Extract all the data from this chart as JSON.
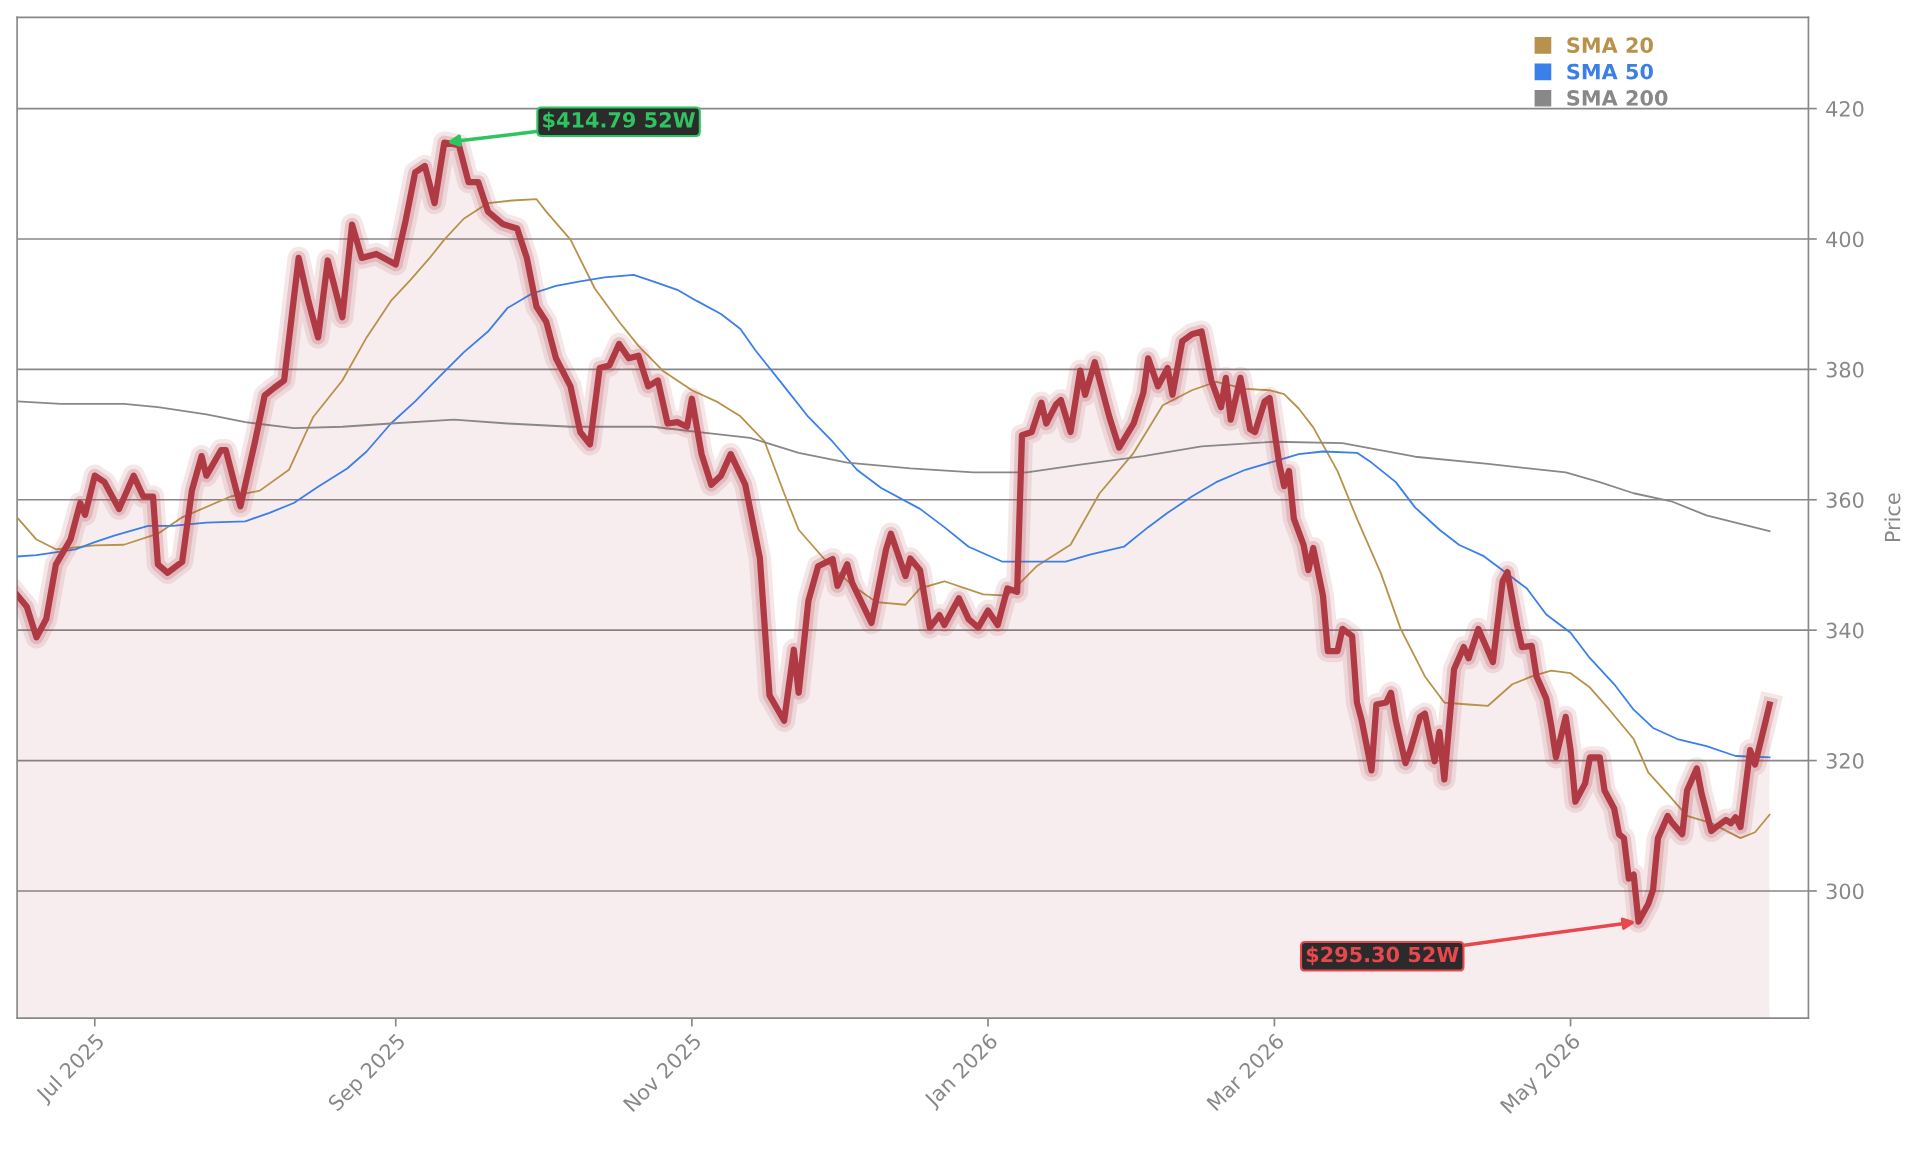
{
  "chart_data": {
    "type": "line",
    "ylabel": "Price",
    "xlim": [
      "2025-06-15",
      "2026-06-19"
    ],
    "ylim": [
      280.5,
      434
    ],
    "xticks": [
      {
        "value": "2025-07-01",
        "label": "Jul 2025"
      },
      {
        "value": "2025-09-01",
        "label": "Sep 2025"
      },
      {
        "value": "2025-11-01",
        "label": "Nov 2025"
      },
      {
        "value": "2026-01-01",
        "label": "Jan 2026"
      },
      {
        "value": "2026-03-01",
        "label": "Mar 2026"
      },
      {
        "value": "2026-05-01",
        "label": "May 2026"
      }
    ],
    "yticks": [
      300,
      320,
      340,
      360,
      380,
      400,
      420
    ],
    "grid": "y",
    "legend": "top right",
    "annotations": [
      {
        "text": "$414.79 52W",
        "x": "2025-09-11",
        "y": 414.79
      },
      {
        "text": "$295.30 52W",
        "x": "2026-05-15",
        "y": 295.3
      }
    ],
    "series": [
      {
        "type": "area",
        "color": "#b03a44",
        "x": [
          "2025-06-15",
          "2025-06-17",
          "2025-06-19",
          "2025-06-21",
          "2025-06-23",
          "2025-06-26",
          "2025-06-28",
          "2025-06-29",
          "2025-07-01",
          "2025-07-03",
          "2025-07-06",
          "2025-07-09",
          "2025-07-11",
          "2025-07-13",
          "2025-07-14",
          "2025-07-16",
          "2025-07-19",
          "2025-07-21",
          "2025-07-23",
          "2025-07-24",
          "2025-07-27",
          "2025-07-28",
          "2025-07-31",
          "2025-08-03",
          "2025-08-05",
          "2025-08-07",
          "2025-08-09",
          "2025-08-12",
          "2025-08-14",
          "2025-08-16",
          "2025-08-18",
          "2025-08-21",
          "2025-08-23",
          "2025-08-25",
          "2025-08-28",
          "2025-09-01",
          "2025-09-03",
          "2025-09-05",
          "2025-09-07",
          "2025-09-09",
          "2025-09-11",
          "2025-09-14",
          "2025-09-16",
          "2025-09-18",
          "2025-09-20",
          "2025-09-23",
          "2025-09-26",
          "2025-09-28",
          "2025-09-30",
          "2025-10-02",
          "2025-10-04",
          "2025-10-07",
          "2025-10-09",
          "2025-10-11",
          "2025-10-13",
          "2025-10-15",
          "2025-10-17",
          "2025-10-19",
          "2025-10-21",
          "2025-10-23",
          "2025-10-25",
          "2025-10-27",
          "2025-10-29",
          "2025-10-31",
          "2025-11-01",
          "2025-11-03",
          "2025-11-05",
          "2025-11-07",
          "2025-11-09",
          "2025-11-12",
          "2025-11-15",
          "2025-11-17",
          "2025-11-20",
          "2025-11-22",
          "2025-11-23",
          "2025-11-25",
          "2025-11-27",
          "2025-11-30",
          "2025-12-01",
          "2025-12-03",
          "2025-12-04",
          "2025-12-08",
          "2025-12-11",
          "2025-12-12",
          "2025-12-15",
          "2025-12-16",
          "2025-12-18",
          "2025-12-20",
          "2025-12-22",
          "2025-12-23",
          "2025-12-26",
          "2025-12-28",
          "2025-12-30",
          "2026-01-01",
          "2026-01-03",
          "2026-01-05",
          "2026-01-07",
          "2026-01-08",
          "2026-01-10",
          "2026-01-12",
          "2026-01-13",
          "2026-01-15",
          "2026-01-16",
          "2026-01-18",
          "2026-01-20",
          "2026-01-21",
          "2026-01-23",
          "2026-01-26",
          "2026-01-28",
          "2026-01-31",
          "2026-02-02",
          "2026-02-03",
          "2026-02-05",
          "2026-02-07",
          "2026-02-08",
          "2026-02-10",
          "2026-02-12",
          "2026-02-14",
          "2026-02-16",
          "2026-02-18",
          "2026-02-19",
          "2026-02-20",
          "2026-02-22",
          "2026-02-24",
          "2026-02-25",
          "2026-02-27",
          "2026-02-28",
          "2026-03-02",
          "2026-03-03",
          "2026-03-04",
          "2026-03-05",
          "2026-03-07",
          "2026-03-08",
          "2026-03-09",
          "2026-03-11",
          "2026-03-12",
          "2026-03-14",
          "2026-03-15",
          "2026-03-17",
          "2026-03-18",
          "2026-03-19",
          "2026-03-21",
          "2026-03-22",
          "2026-03-24",
          "2026-03-25",
          "2026-03-26",
          "2026-03-28",
          "2026-03-29",
          "2026-03-31",
          "2026-04-01",
          "2026-04-03",
          "2026-04-04",
          "2026-04-05",
          "2026-04-07",
          "2026-04-09",
          "2026-04-10",
          "2026-04-12",
          "2026-04-14",
          "2026-04-15",
          "2026-04-17",
          "2026-04-18",
          "2026-04-20",
          "2026-04-21",
          "2026-04-23",
          "2026-04-24",
          "2026-04-26",
          "2026-04-27",
          "2026-04-28",
          "2026-04-30",
          "2026-05-01",
          "2026-05-02",
          "2026-05-04",
          "2026-05-05",
          "2026-05-07",
          "2026-05-08",
          "2026-05-10",
          "2026-05-11",
          "2026-05-12",
          "2026-05-13",
          "2026-05-14",
          "2026-05-15",
          "2026-05-17",
          "2026-05-18",
          "2026-05-19",
          "2026-05-21",
          "2026-05-22",
          "2026-05-24",
          "2026-05-25",
          "2026-05-27",
          "2026-05-28",
          "2026-05-30",
          "2026-05-31",
          "2026-06-02",
          "2026-06-03",
          "2026-06-04",
          "2026-06-05",
          "2026-06-07",
          "2026-06-08",
          "2026-06-10",
          "2026-06-11"
        ],
        "values": [
          345.4,
          343.6,
          338.9,
          341.7,
          350.1,
          353.9,
          359.5,
          357.7,
          363.7,
          362.7,
          358.6,
          363.7,
          360.5,
          360.5,
          350.1,
          348.8,
          350.5,
          361.4,
          366.7,
          363.7,
          367.6,
          367.6,
          359.0,
          368.9,
          376.0,
          377.2,
          378.3,
          397.1,
          390.5,
          384.9,
          396.7,
          388.0,
          402.2,
          397.1,
          397.7,
          396.1,
          402.7,
          410.2,
          411.2,
          405.5,
          414.79,
          414.4,
          408.7,
          408.7,
          404.2,
          402.3,
          401.6,
          397.1,
          389.6,
          387.3,
          381.7,
          377.4,
          370.4,
          368.5,
          380.2,
          380.6,
          383.9,
          381.7,
          382.1,
          377.4,
          378.3,
          371.7,
          371.9,
          371.2,
          375.5,
          367.0,
          362.3,
          363.7,
          367.0,
          362.3,
          351.1,
          330.0,
          326.1,
          337.0,
          330.4,
          344.5,
          349.8,
          350.9,
          346.8,
          350.1,
          347.3,
          341.1,
          352.4,
          354.8,
          348.3,
          351.0,
          349.2,
          340.4,
          342.3,
          340.8,
          344.9,
          341.7,
          340.4,
          343.0,
          340.8,
          346.4,
          345.9,
          369.9,
          370.4,
          374.9,
          371.7,
          374.6,
          375.3,
          370.4,
          379.8,
          376.1,
          381.1,
          372.7,
          368.0,
          371.7,
          376.4,
          381.7,
          377.4,
          380.2,
          376.1,
          384.3,
          385.4,
          385.8,
          378.3,
          374.2,
          378.7,
          372.3,
          378.7,
          370.8,
          370.4,
          375.1,
          375.6,
          365.5,
          362.1,
          364.4,
          357.1,
          353.1,
          349.2,
          352.6,
          345.3,
          336.8,
          336.8,
          340.2,
          339.1,
          328.9,
          326.1,
          318.5,
          328.6,
          328.9,
          330.4,
          326.1,
          319.6,
          321.6,
          326.7,
          327.2,
          319.9,
          324.4,
          317.1,
          334.0,
          337.4,
          335.7,
          340.2,
          336.8,
          335.1,
          347.5,
          348.9,
          340.7,
          337.4,
          337.6,
          332.9,
          329.5,
          325.5,
          320.5,
          326.7,
          321.6,
          313.7,
          316.5,
          320.5,
          320.5,
          315.4,
          312.6,
          308.7,
          308.1,
          301.9,
          302.5,
          295.3,
          298.0,
          300.2,
          308.1,
          311.5,
          310.4,
          308.7,
          315.4,
          318.8,
          314.9,
          309.2,
          309.8,
          310.9,
          310.4,
          311.3,
          309.8,
          321.6,
          319.4,
          325.5,
          328.6
        ]
      },
      {
        "name": "SMA 20",
        "color": "#b8924a",
        "x": [
          "2025-06-15",
          "2025-06-19",
          "2025-06-23",
          "2025-07-01",
          "2025-07-07",
          "2025-07-14",
          "2025-07-19",
          "2025-07-29",
          "2025-08-04",
          "2025-08-10",
          "2025-08-15",
          "2025-08-21",
          "2025-08-26",
          "2025-08-31",
          "2025-09-04",
          "2025-09-08",
          "2025-09-11",
          "2025-09-15",
          "2025-09-20",
          "2025-09-25",
          "2025-09-30",
          "2025-10-02",
          "2025-10-07",
          "2025-10-12",
          "2025-10-17",
          "2025-10-21",
          "2025-10-26",
          "2025-11-01",
          "2025-11-06",
          "2025-11-11",
          "2025-11-16",
          "2025-11-20",
          "2025-11-23",
          "2025-11-29",
          "2025-12-04",
          "2025-12-09",
          "2025-12-15",
          "2025-12-18",
          "2025-12-23",
          "2025-12-31",
          "2026-01-05",
          "2026-01-11",
          "2026-01-18",
          "2026-01-24",
          "2026-01-31",
          "2026-02-06",
          "2026-02-12",
          "2026-02-17",
          "2026-02-23",
          "2026-02-28",
          "2026-03-03",
          "2026-03-06",
          "2026-03-09",
          "2026-03-14",
          "2026-03-18",
          "2026-03-23",
          "2026-03-27",
          "2026-04-01",
          "2026-04-05",
          "2026-04-10",
          "2026-04-14",
          "2026-04-19",
          "2026-04-23",
          "2026-04-27",
          "2026-05-01",
          "2026-05-05",
          "2026-05-09",
          "2026-05-14",
          "2026-05-17",
          "2026-05-21",
          "2026-05-25",
          "2026-05-30",
          "2026-06-05",
          "2026-06-08",
          "2026-06-11"
        ],
        "values": [
          357.3,
          353.9,
          352.4,
          353.0,
          353.1,
          354.8,
          357.3,
          360.5,
          361.4,
          364.6,
          372.7,
          378.3,
          384.9,
          390.5,
          393.7,
          397.1,
          399.9,
          403.1,
          405.5,
          405.9,
          406.1,
          404.2,
          399.9,
          392.4,
          387.3,
          383.6,
          379.8,
          376.8,
          375.1,
          372.8,
          368.9,
          361.0,
          355.4,
          350.3,
          346.9,
          344.3,
          343.9,
          346.4,
          347.5,
          345.5,
          345.3,
          349.8,
          353.1,
          361.0,
          367.2,
          374.5,
          376.8,
          378.1,
          377.0,
          376.8,
          376.2,
          374.0,
          371.1,
          364.4,
          357.1,
          348.6,
          340.2,
          332.9,
          328.9,
          328.6,
          328.4,
          331.7,
          332.9,
          333.8,
          333.4,
          331.2,
          327.8,
          323.3,
          318.2,
          314.9,
          311.5,
          310.4,
          308.1,
          309.0,
          311.7
        ]
      },
      {
        "name": "SMA 50",
        "color": "#3b7fe8",
        "x": [
          "2025-06-15",
          "2025-06-19",
          "2025-06-27",
          "2025-07-01",
          "2025-07-05",
          "2025-07-12",
          "2025-07-17",
          "2025-07-24",
          "2025-08-01",
          "2025-08-06",
          "2025-08-11",
          "2025-08-16",
          "2025-08-22",
          "2025-08-26",
          "2025-08-31",
          "2025-09-05",
          "2025-09-10",
          "2025-09-15",
          "2025-09-20",
          "2025-09-24",
          "2025-09-29",
          "2025-10-04",
          "2025-10-09",
          "2025-10-14",
          "2025-10-20",
          "2025-10-24",
          "2025-10-29",
          "2025-11-02",
          "2025-11-07",
          "2025-11-11",
          "2025-11-14",
          "2025-11-20",
          "2025-11-25",
          "2025-11-30",
          "2025-12-05",
          "2025-12-10",
          "2025-12-18",
          "2025-12-23",
          "2025-12-28",
          "2026-01-04",
          "2026-01-09",
          "2026-01-17",
          "2026-01-22",
          "2026-01-29",
          "2026-02-03",
          "2026-02-07",
          "2026-02-12",
          "2026-02-17",
          "2026-02-23",
          "2026-03-01",
          "2026-03-06",
          "2026-03-11",
          "2026-03-18",
          "2026-03-21",
          "2026-03-26",
          "2026-03-30",
          "2026-04-04",
          "2026-04-08",
          "2026-04-13",
          "2026-04-17",
          "2026-04-22",
          "2026-04-26",
          "2026-05-01",
          "2026-05-05",
          "2026-05-10",
          "2026-05-14",
          "2026-05-18",
          "2026-05-23",
          "2026-05-29",
          "2026-06-04",
          "2026-06-11"
        ],
        "values": [
          351.3,
          351.5,
          352.4,
          353.5,
          354.5,
          356.0,
          356.0,
          356.5,
          356.7,
          358.0,
          359.5,
          362.0,
          364.8,
          367.4,
          371.7,
          375.1,
          378.9,
          382.6,
          385.8,
          389.4,
          391.6,
          392.8,
          393.5,
          394.1,
          394.5,
          393.5,
          392.2,
          390.5,
          388.5,
          386.2,
          383.0,
          377.4,
          372.7,
          368.9,
          364.6,
          361.8,
          358.6,
          355.8,
          352.8,
          350.5,
          350.5,
          350.5,
          351.6,
          352.8,
          355.8,
          358.0,
          360.5,
          362.7,
          364.6,
          365.9,
          367.0,
          367.4,
          367.2,
          365.7,
          362.7,
          358.8,
          355.4,
          353.1,
          351.4,
          349.2,
          346.4,
          342.4,
          339.6,
          335.7,
          331.7,
          327.8,
          325.0,
          323.3,
          322.2,
          320.7,
          320.5
        ]
      },
      {
        "name": "SMA 200",
        "color": "#888888",
        "x": [
          "2025-06-15",
          "2025-06-24",
          "2025-07-07",
          "2025-07-14",
          "2025-07-24",
          "2025-08-01",
          "2025-08-11",
          "2025-08-21",
          "2025-08-31",
          "2025-09-13",
          "2025-09-24",
          "2025-10-07",
          "2025-10-24",
          "2025-11-02",
          "2025-11-13",
          "2025-11-23",
          "2025-12-03",
          "2025-12-16",
          "2025-12-29",
          "2026-01-09",
          "2026-01-20",
          "2026-02-02",
          "2026-02-14",
          "2026-03-01",
          "2026-03-15",
          "2026-03-30",
          "2026-04-14",
          "2026-04-30",
          "2026-05-07",
          "2026-05-14",
          "2026-05-22",
          "2026-05-29",
          "2026-06-05",
          "2026-06-11"
        ],
        "values": [
          375.1,
          374.7,
          374.7,
          374.2,
          373.1,
          371.9,
          371.0,
          371.2,
          371.7,
          372.3,
          371.7,
          371.2,
          371.2,
          370.4,
          369.5,
          367.2,
          365.7,
          364.8,
          364.2,
          364.2,
          365.4,
          366.7,
          368.2,
          368.9,
          368.7,
          366.6,
          365.5,
          364.2,
          362.7,
          361.0,
          359.7,
          357.6,
          356.3,
          355.2
        ]
      }
    ]
  }
}
